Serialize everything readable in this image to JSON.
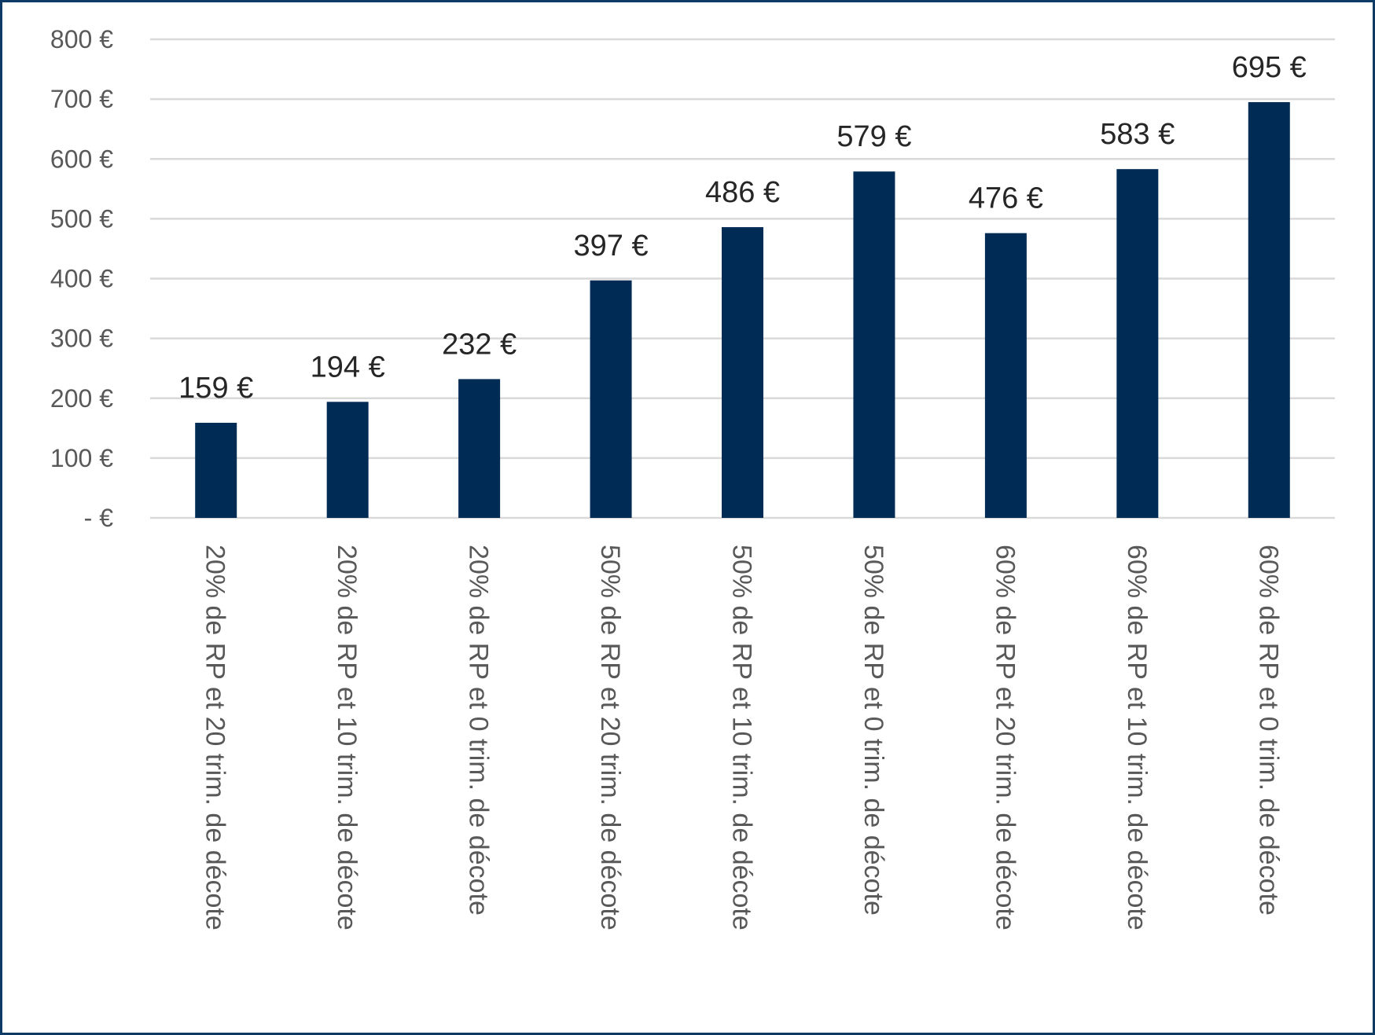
{
  "chart_data": {
    "type": "bar",
    "title": "",
    "xlabel": "",
    "ylabel": "",
    "ylim": [
      0,
      800
    ],
    "grid": true,
    "bar_color": "#002b55",
    "y_ticks": [
      {
        "value": 0,
        "label": "-   €"
      },
      {
        "value": 100,
        "label": "100 €"
      },
      {
        "value": 200,
        "label": "200 €"
      },
      {
        "value": 300,
        "label": "300 €"
      },
      {
        "value": 400,
        "label": "400 €"
      },
      {
        "value": 500,
        "label": "500 €"
      },
      {
        "value": 600,
        "label": "600 €"
      },
      {
        "value": 700,
        "label": "700 €"
      },
      {
        "value": 800,
        "label": "800 €"
      }
    ],
    "categories": [
      "20% de RP et 20 trim. de décote",
      "20% de RP et 10 trim. de décote",
      "20% de RP et 0 trim. de décote",
      "50% de RP et 20 trim. de décote",
      "50% de RP et 10 trim. de décote",
      "50% de RP et 0 trim. de décote",
      "60% de RP et 20 trim. de décote",
      "60% de RP et 10 trim. de décote",
      "60% de RP et 0 trim. de décote"
    ],
    "values": [
      159,
      194,
      232,
      397,
      486,
      579,
      476,
      583,
      695
    ],
    "data_labels": [
      "159 €",
      "194 €",
      "232 €",
      "397 €",
      "486 €",
      "579 €",
      "476 €",
      "583 €",
      "695 €"
    ]
  }
}
